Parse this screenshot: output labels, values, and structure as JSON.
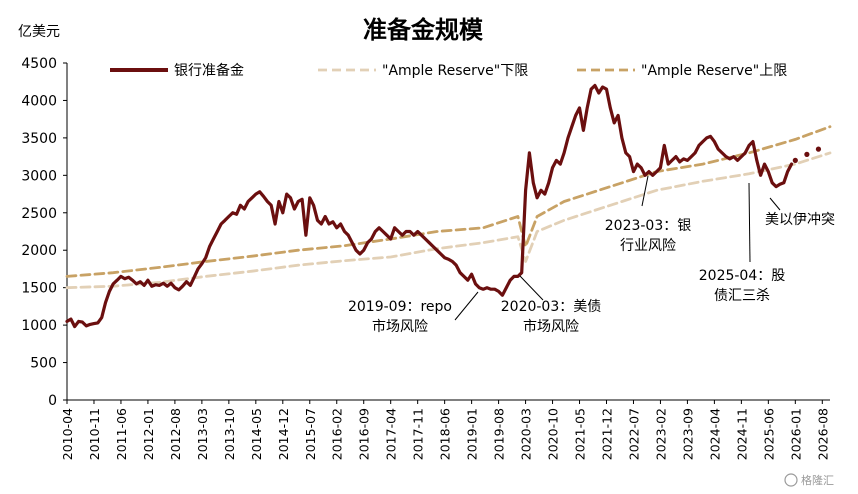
{
  "chart_data": {
    "type": "line",
    "title": "准备金规模",
    "unit_label": "亿美元",
    "ylim": [
      0,
      4500
    ],
    "yticks": [
      0,
      500,
      1000,
      1500,
      2000,
      2500,
      3000,
      3500,
      4000,
      4500
    ],
    "xlim": [
      "2010-04",
      "2026-10"
    ],
    "xticks": [
      "2010-04",
      "2010-11",
      "2011-06",
      "2012-01",
      "2012-08",
      "2013-03",
      "2013-10",
      "2014-05",
      "2014-12",
      "2015-07",
      "2016-02",
      "2016-09",
      "2017-04",
      "2017-11",
      "2018-06",
      "2019-01",
      "2019-08",
      "2020-03",
      "2020-10",
      "2021-05",
      "2021-12",
      "2022-07",
      "2023-02",
      "2023-09",
      "2024-04",
      "2024-11",
      "2025-06",
      "2026-01",
      "2026-08"
    ],
    "grid": false,
    "legend_position": "top",
    "series": [
      {
        "name": "银行准备金",
        "style": "solid",
        "color": "#6b0f0f",
        "points": [
          [
            "2010-04",
            1050
          ],
          [
            "2010-05",
            1080
          ],
          [
            "2010-06",
            980
          ],
          [
            "2010-07",
            1050
          ],
          [
            "2010-08",
            1040
          ],
          [
            "2010-09",
            990
          ],
          [
            "2010-10",
            1010
          ],
          [
            "2010-11",
            1020
          ],
          [
            "2010-12",
            1030
          ],
          [
            "2011-01",
            1100
          ],
          [
            "2011-02",
            1300
          ],
          [
            "2011-03",
            1450
          ],
          [
            "2011-04",
            1550
          ],
          [
            "2011-05",
            1600
          ],
          [
            "2011-06",
            1650
          ],
          [
            "2011-07",
            1620
          ],
          [
            "2011-08",
            1640
          ],
          [
            "2011-09",
            1600
          ],
          [
            "2011-10",
            1550
          ],
          [
            "2011-11",
            1580
          ],
          [
            "2011-12",
            1530
          ],
          [
            "2012-01",
            1600
          ],
          [
            "2012-02",
            1520
          ],
          [
            "2012-03",
            1540
          ],
          [
            "2012-04",
            1530
          ],
          [
            "2012-05",
            1560
          ],
          [
            "2012-06",
            1520
          ],
          [
            "2012-07",
            1560
          ],
          [
            "2012-08",
            1500
          ],
          [
            "2012-09",
            1470
          ],
          [
            "2012-10",
            1520
          ],
          [
            "2012-11",
            1580
          ],
          [
            "2012-12",
            1530
          ],
          [
            "2013-01",
            1640
          ],
          [
            "2013-02",
            1750
          ],
          [
            "2013-03",
            1820
          ],
          [
            "2013-04",
            1900
          ],
          [
            "2013-05",
            2050
          ],
          [
            "2013-06",
            2150
          ],
          [
            "2013-07",
            2250
          ],
          [
            "2013-08",
            2350
          ],
          [
            "2013-09",
            2400
          ],
          [
            "2013-10",
            2450
          ],
          [
            "2013-11",
            2500
          ],
          [
            "2013-12",
            2480
          ],
          [
            "2014-01",
            2600
          ],
          [
            "2014-02",
            2550
          ],
          [
            "2014-03",
            2650
          ],
          [
            "2014-04",
            2700
          ],
          [
            "2014-05",
            2750
          ],
          [
            "2014-06",
            2780
          ],
          [
            "2014-07",
            2720
          ],
          [
            "2014-08",
            2650
          ],
          [
            "2014-09",
            2600
          ],
          [
            "2014-10",
            2350
          ],
          [
            "2014-11",
            2650
          ],
          [
            "2014-12",
            2500
          ],
          [
            "2015-01",
            2750
          ],
          [
            "2015-02",
            2700
          ],
          [
            "2015-03",
            2550
          ],
          [
            "2015-04",
            2650
          ],
          [
            "2015-05",
            2680
          ],
          [
            "2015-06",
            2200
          ],
          [
            "2015-07",
            2700
          ],
          [
            "2015-08",
            2600
          ],
          [
            "2015-09",
            2400
          ],
          [
            "2015-10",
            2350
          ],
          [
            "2015-11",
            2450
          ],
          [
            "2015-12",
            2350
          ],
          [
            "2016-01",
            2380
          ],
          [
            "2016-02",
            2300
          ],
          [
            "2016-03",
            2350
          ],
          [
            "2016-04",
            2250
          ],
          [
            "2016-05",
            2200
          ],
          [
            "2016-06",
            2100
          ],
          [
            "2016-07",
            2000
          ],
          [
            "2016-08",
            1950
          ],
          [
            "2016-09",
            2000
          ],
          [
            "2016-10",
            2100
          ],
          [
            "2016-11",
            2150
          ],
          [
            "2016-12",
            2250
          ],
          [
            "2017-01",
            2300
          ],
          [
            "2017-02",
            2250
          ],
          [
            "2017-03",
            2200
          ],
          [
            "2017-04",
            2150
          ],
          [
            "2017-05",
            2300
          ],
          [
            "2017-06",
            2250
          ],
          [
            "2017-07",
            2200
          ],
          [
            "2017-08",
            2250
          ],
          [
            "2017-09",
            2250
          ],
          [
            "2017-10",
            2200
          ],
          [
            "2017-11",
            2250
          ],
          [
            "2017-12",
            2200
          ],
          [
            "2018-01",
            2150
          ],
          [
            "2018-02",
            2100
          ],
          [
            "2018-03",
            2050
          ],
          [
            "2018-04",
            2000
          ],
          [
            "2018-05",
            1950
          ],
          [
            "2018-06",
            1900
          ],
          [
            "2018-07",
            1880
          ],
          [
            "2018-08",
            1850
          ],
          [
            "2018-09",
            1800
          ],
          [
            "2018-10",
            1700
          ],
          [
            "2018-11",
            1650
          ],
          [
            "2018-12",
            1600
          ],
          [
            "2019-01",
            1680
          ],
          [
            "2019-02",
            1550
          ],
          [
            "2019-03",
            1500
          ],
          [
            "2019-04",
            1480
          ],
          [
            "2019-05",
            1500
          ],
          [
            "2019-06",
            1480
          ],
          [
            "2019-07",
            1480
          ],
          [
            "2019-08",
            1450
          ],
          [
            "2019-09",
            1400
          ],
          [
            "2019-10",
            1500
          ],
          [
            "2019-11",
            1600
          ],
          [
            "2019-12",
            1650
          ],
          [
            "2020-01",
            1650
          ],
          [
            "2020-02",
            1700
          ],
          [
            "2020-03",
            2800
          ],
          [
            "2020-04",
            3300
          ],
          [
            "2020-05",
            2900
          ],
          [
            "2020-06",
            2700
          ],
          [
            "2020-07",
            2800
          ],
          [
            "2020-08",
            2750
          ],
          [
            "2020-09",
            2900
          ],
          [
            "2020-10",
            3100
          ],
          [
            "2020-11",
            3200
          ],
          [
            "2020-12",
            3150
          ],
          [
            "2021-01",
            3300
          ],
          [
            "2021-02",
            3500
          ],
          [
            "2021-03",
            3650
          ],
          [
            "2021-04",
            3800
          ],
          [
            "2021-05",
            3900
          ],
          [
            "2021-06",
            3600
          ],
          [
            "2021-07",
            3900
          ],
          [
            "2021-08",
            4150
          ],
          [
            "2021-09",
            4200
          ],
          [
            "2021-10",
            4100
          ],
          [
            "2021-11",
            4180
          ],
          [
            "2021-12",
            4150
          ],
          [
            "2022-01",
            3900
          ],
          [
            "2022-02",
            3700
          ],
          [
            "2022-03",
            3800
          ],
          [
            "2022-04",
            3500
          ],
          [
            "2022-05",
            3300
          ],
          [
            "2022-06",
            3250
          ],
          [
            "2022-07",
            3050
          ],
          [
            "2022-08",
            3150
          ],
          [
            "2022-09",
            3100
          ],
          [
            "2022-10",
            3000
          ],
          [
            "2022-11",
            3050
          ],
          [
            "2022-12",
            3000
          ],
          [
            "2023-01",
            3050
          ],
          [
            "2023-02",
            3100
          ],
          [
            "2023-03",
            3400
          ],
          [
            "2023-04",
            3150
          ],
          [
            "2023-05",
            3200
          ],
          [
            "2023-06",
            3250
          ],
          [
            "2023-07",
            3180
          ],
          [
            "2023-08",
            3220
          ],
          [
            "2023-09",
            3200
          ],
          [
            "2023-10",
            3250
          ],
          [
            "2023-11",
            3300
          ],
          [
            "2023-12",
            3400
          ],
          [
            "2024-01",
            3450
          ],
          [
            "2024-02",
            3500
          ],
          [
            "2024-03",
            3520
          ],
          [
            "2024-04",
            3450
          ],
          [
            "2024-05",
            3350
          ],
          [
            "2024-06",
            3300
          ],
          [
            "2024-07",
            3250
          ],
          [
            "2024-08",
            3220
          ],
          [
            "2024-09",
            3250
          ],
          [
            "2024-10",
            3200
          ],
          [
            "2024-11",
            3250
          ],
          [
            "2024-12",
            3300
          ],
          [
            "2025-01",
            3400
          ],
          [
            "2025-02",
            3450
          ],
          [
            "2025-03",
            3200
          ],
          [
            "2025-04",
            3000
          ],
          [
            "2025-05",
            3150
          ],
          [
            "2025-06",
            3050
          ],
          [
            "2025-07",
            2900
          ],
          [
            "2025-08",
            2850
          ],
          [
            "2025-09",
            2880
          ],
          [
            "2025-10",
            2900
          ],
          [
            "2025-11",
            3050
          ],
          [
            "2025-12",
            3150
          ]
        ]
      },
      {
        "name": "\"Ample Reserve\"下限",
        "style": "dashed",
        "color": "#e2d0b6",
        "points": [
          [
            "2010-04",
            1500
          ],
          [
            "2011-04",
            1520
          ],
          [
            "2012-04",
            1570
          ],
          [
            "2013-04",
            1650
          ],
          [
            "2014-04",
            1720
          ],
          [
            "2015-04",
            1800
          ],
          [
            "2016-04",
            1860
          ],
          [
            "2017-04",
            1910
          ],
          [
            "2018-04",
            2020
          ],
          [
            "2019-04",
            2100
          ],
          [
            "2020-01",
            2180
          ],
          [
            "2020-03",
            1850
          ],
          [
            "2020-06",
            2250
          ],
          [
            "2021-01",
            2400
          ],
          [
            "2022-01",
            2600
          ],
          [
            "2023-01",
            2800
          ],
          [
            "2024-01",
            2920
          ],
          [
            "2025-01",
            3020
          ],
          [
            "2026-01",
            3150
          ],
          [
            "2026-10",
            3300
          ]
        ]
      },
      {
        "name": "\"Ample Reserve\"上限",
        "style": "dashed",
        "color": "#c8a265",
        "points": [
          [
            "2010-04",
            1650
          ],
          [
            "2011-04",
            1700
          ],
          [
            "2012-04",
            1770
          ],
          [
            "2013-04",
            1850
          ],
          [
            "2014-04",
            1920
          ],
          [
            "2015-04",
            2000
          ],
          [
            "2016-04",
            2060
          ],
          [
            "2017-04",
            2150
          ],
          [
            "2018-04",
            2250
          ],
          [
            "2019-04",
            2300
          ],
          [
            "2020-01",
            2450
          ],
          [
            "2020-03",
            2050
          ],
          [
            "2020-06",
            2450
          ],
          [
            "2021-01",
            2650
          ],
          [
            "2022-01",
            2850
          ],
          [
            "2023-01",
            3050
          ],
          [
            "2024-01",
            3150
          ],
          [
            "2025-01",
            3300
          ],
          [
            "2026-01",
            3480
          ],
          [
            "2026-10",
            3650
          ]
        ]
      },
      {
        "name": "",
        "style": "dotted",
        "color": "#6b0f0f",
        "points": [
          [
            "2026-01",
            3200
          ],
          [
            "2026-04",
            3280
          ],
          [
            "2026-07",
            3350
          ]
        ]
      }
    ],
    "annotations": [
      {
        "id": "a1",
        "lines": [
          "2019-09：repo",
          "市场风险"
        ],
        "at": [
          "2019-09",
          1400
        ]
      },
      {
        "id": "a2",
        "lines": [
          "2020-03：美债",
          "市场风险"
        ],
        "at": [
          "2020-03",
          1700
        ]
      },
      {
        "id": "a3",
        "lines": [
          "2023-03：银",
          "行业风险"
        ],
        "at": [
          "2023-03",
          3050
        ]
      },
      {
        "id": "a4",
        "lines": [
          "2025-04：股",
          "债汇三杀"
        ],
        "at": [
          "2025-04",
          3000
        ]
      },
      {
        "id": "a5",
        "lines": [
          "美以伊冲突"
        ],
        "at": [
          "2025-11",
          3050
        ]
      }
    ]
  },
  "watermark": "格隆汇"
}
